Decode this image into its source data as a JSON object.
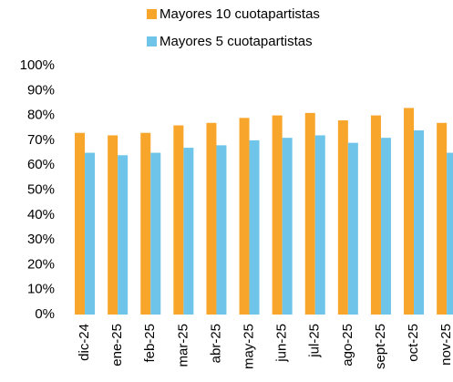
{
  "chart_data": {
    "type": "bar",
    "categories": [
      "dic-24",
      "ene-25",
      "feb-25",
      "mar-25",
      "abr-25",
      "may-25",
      "jun-25",
      "jul-25",
      "ago-25",
      "sept-25",
      "oct-25",
      "nov-25"
    ],
    "series": [
      {
        "name": "Mayores 10 cuotapartistas",
        "color": "#f7a52b",
        "values": [
          73,
          72,
          73,
          76,
          77,
          79,
          80,
          81,
          78,
          80,
          83,
          77
        ]
      },
      {
        "name": "Mayores 5 cuotapartistas",
        "color": "#6ec5e9",
        "values": [
          65,
          64,
          65,
          67,
          68,
          70,
          71,
          72,
          69,
          71,
          74,
          65
        ]
      }
    ],
    "ylim": [
      0,
      100
    ],
    "yticks": [
      {
        "value": 0,
        "label": "0%"
      },
      {
        "value": 10,
        "label": "10%"
      },
      {
        "value": 20,
        "label": "20%"
      },
      {
        "value": 30,
        "label": "30%"
      },
      {
        "value": 40,
        "label": "40%"
      },
      {
        "value": 50,
        "label": "50%"
      },
      {
        "value": 60,
        "label": "60%"
      },
      {
        "value": 70,
        "label": "70%"
      },
      {
        "value": 80,
        "label": "80%"
      },
      {
        "value": 90,
        "label": "90%"
      },
      {
        "value": 100,
        "label": "100%"
      }
    ],
    "grid": false,
    "legend": "top"
  }
}
